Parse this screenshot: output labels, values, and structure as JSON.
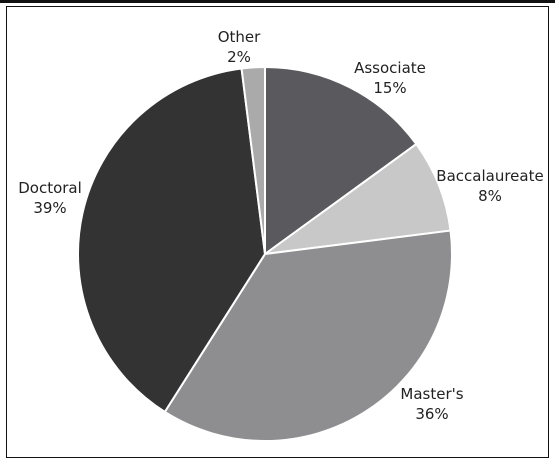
{
  "chart_data": {
    "type": "pie",
    "title": "",
    "slices": [
      {
        "label": "Associate",
        "percent_label": "15%",
        "value": 15,
        "color": "#5a5a5e"
      },
      {
        "label": "Baccalaureate",
        "percent_label": "8%",
        "value": 8,
        "color": "#c8c8c8"
      },
      {
        "label": "Master's",
        "percent_label": "36%",
        "value": 36,
        "color": "#8e8e90"
      },
      {
        "label": "Doctoral",
        "percent_label": "39%",
        "value": 39,
        "color": "#333333"
      },
      {
        "label": "Other",
        "percent_label": "2%",
        "value": 2,
        "color": "#aaaaaa"
      }
    ],
    "legend": "none"
  }
}
